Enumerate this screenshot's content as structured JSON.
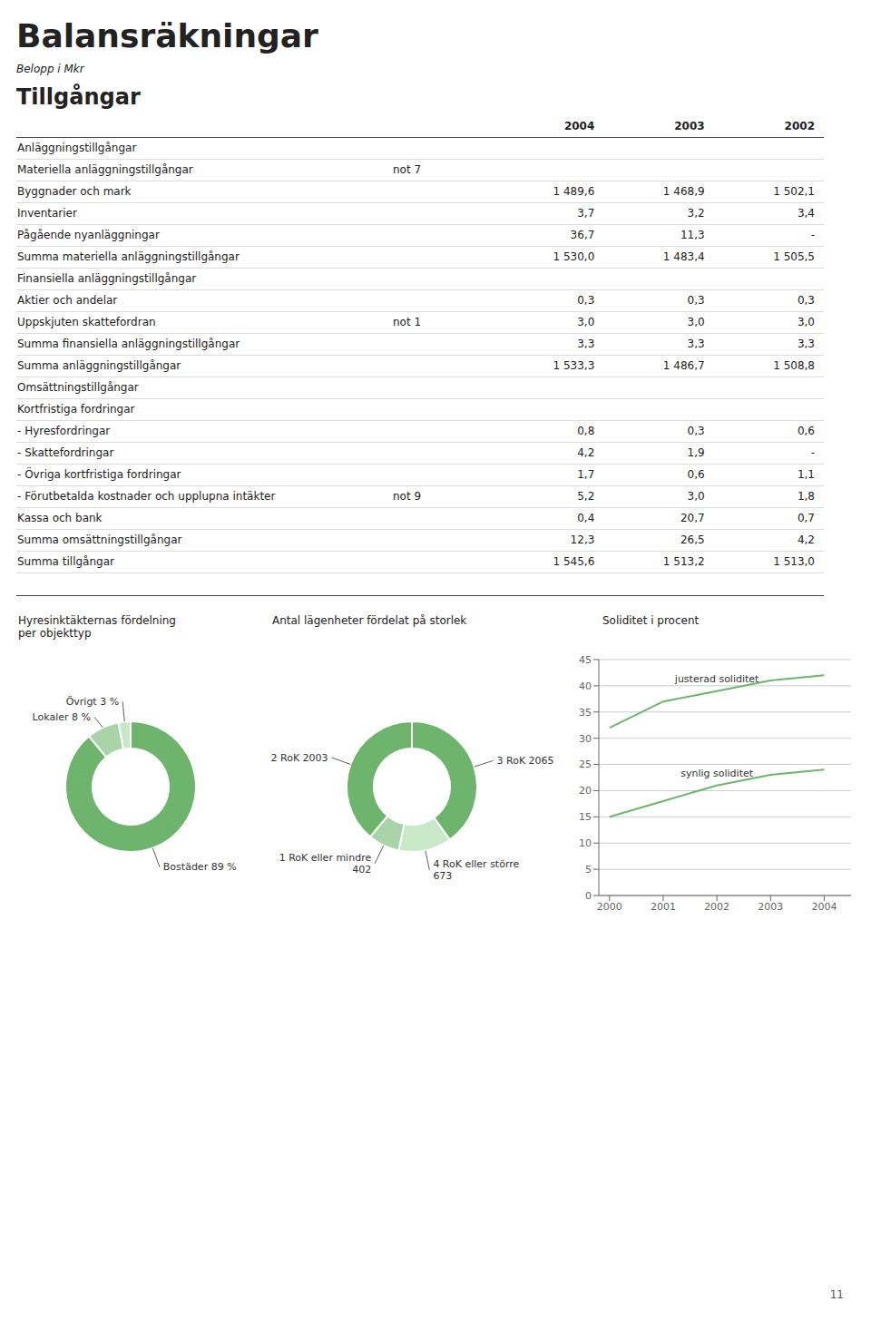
{
  "chart_data": [
    {
      "type": "table",
      "title": "Balansräkningar",
      "subtitle": "Belopp i Mkr",
      "annotations": [
        {
          "text": "Tillgångar"
        },
        {
          "text": "not 7",
          "category": "Materiella anläggningstillgångar"
        },
        {
          "text": "not 1",
          "category": "Uppskjuten skattefordran"
        },
        {
          "text": "not 9",
          "category": "- Förutbetalda kostnader och upplupna intäkter"
        },
        {
          "text": "11"
        }
      ],
      "categories": [
        "Anläggningstillgångar",
        "Materiella anläggningstillgångar",
        "Byggnader och mark",
        "Inventarier",
        "Pågående nyanläggningar",
        "Summa materiella anläggningstillgångar",
        "Finansiella anläggningstillgångar",
        "Aktier och andelar",
        "Uppskjuten skattefordran",
        "Summa finansiella anläggningstillgångar",
        "Summa anläggningstillgångar",
        "Omsättningstillgångar",
        "Kortfristiga fordringar",
        "- Hyresfordringar",
        "- Skattefordringar",
        "- Övriga kortfristiga fordringar",
        "- Förutbetalda kostnader och upplupna intäkter",
        "Kassa och bank",
        "Summa omsättningstillgångar",
        "Summa tillgångar"
      ],
      "data_labels": true,
      "series": [
        {
          "name": "2004",
          "values": [
            null,
            null,
            1489.6,
            3.7,
            36.7,
            1530.0,
            null,
            0.3,
            3.0,
            3.3,
            1533.3,
            null,
            null,
            0.8,
            4.2,
            1.7,
            5.2,
            0.4,
            12.3,
            1545.6
          ],
          "value_labels": [
            null,
            null,
            "1 489,6",
            "3,7",
            "36,7",
            "1 530,0",
            null,
            "0,3",
            "3,0",
            "3,3",
            "1 533,3",
            null,
            null,
            "0,8",
            "4,2",
            "1,7",
            "5,2",
            "0,4",
            "12,3",
            "1 545,6"
          ]
        },
        {
          "name": "2003",
          "values": [
            null,
            null,
            1468.9,
            3.2,
            11.3,
            1483.4,
            null,
            0.3,
            3.0,
            3.3,
            1486.7,
            null,
            null,
            0.3,
            1.9,
            0.6,
            3.0,
            20.7,
            26.5,
            1513.2
          ],
          "value_labels": [
            null,
            null,
            "1 468,9",
            "3,2",
            "11,3",
            "1 483,4",
            null,
            "0,3",
            "3,0",
            "3,3",
            "1 486,7",
            null,
            null,
            "0,3",
            "1,9",
            "0,6",
            "3,0",
            "20,7",
            "26,5",
            "1 513,2"
          ]
        },
        {
          "name": "2002",
          "values": [
            null,
            null,
            1502.1,
            3.4,
            null,
            1505.5,
            null,
            0.3,
            3.0,
            3.3,
            1508.8,
            null,
            null,
            0.6,
            null,
            1.1,
            1.8,
            0.7,
            4.2,
            1513.0
          ],
          "value_labels": [
            null,
            null,
            "1 502,1",
            "3,4",
            "-",
            "1 505,5",
            null,
            "0,3",
            "3,0",
            "3,3",
            "1 508,8",
            null,
            null,
            "0,6",
            "-",
            "1,1",
            "1,8",
            "0,7",
            "4,2",
            "1 513,0"
          ]
        }
      ]
    },
    {
      "type": "pie",
      "title": "Hyresinktäkternas fördelning\nper objekttyp",
      "values": [
        89,
        8,
        3
      ],
      "value_labels": [
        "Bostäder 89 %",
        "Lokaler 8 %",
        "Övrigt 3 %"
      ],
      "colors": [
        "#6db56d",
        "#a8d4a8",
        "#c8e8c8"
      ],
      "data_labels": true
    },
    {
      "type": "pie",
      "title": "Antal lägenheter fördelat på storlek",
      "values": [
        2065,
        673,
        402,
        2003
      ],
      "value_labels": [
        "3 RoK 2065",
        "4 RoK eller större\n673",
        "1 RoK eller mindre\n402",
        "2 RoK 2003"
      ],
      "colors": [
        "#6db56d",
        "#c8e8c8",
        "#a8d4a8",
        "#6db56d"
      ],
      "data_labels": true
    },
    {
      "type": "line",
      "title": "Soliditet i procent",
      "x": [
        2000,
        2001,
        2002,
        2003,
        2004
      ],
      "xlim": [
        1999.8,
        2004.5
      ],
      "xticks": [
        2000,
        2001,
        2002,
        2003,
        2004
      ],
      "ylim": [
        0,
        45
      ],
      "yticks": [
        0,
        5,
        10,
        15,
        20,
        25,
        30,
        35,
        40,
        45
      ],
      "grid": true,
      "series": [
        {
          "name": "justerad soliditet",
          "color": "#6db56d",
          "values": [
            32,
            37,
            39,
            41,
            42
          ]
        },
        {
          "name": "synlig soliditet",
          "color": "#6db56d",
          "values": [
            15,
            18,
            21,
            23,
            24
          ]
        }
      ]
    }
  ]
}
